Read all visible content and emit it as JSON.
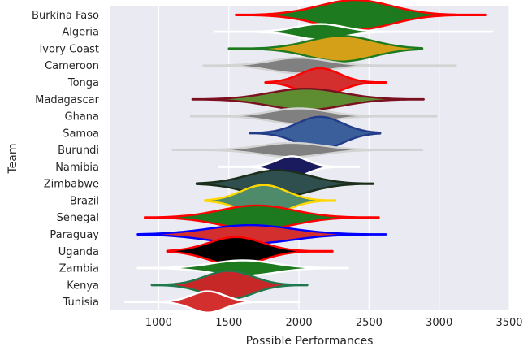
{
  "chart_data": {
    "type": "violin",
    "title": "",
    "xlabel": "Possible Performances",
    "ylabel": "Team",
    "xlim": [
      650,
      3500
    ],
    "xticks": [
      1000,
      1500,
      2000,
      2500,
      3000,
      3500
    ],
    "grid": true,
    "background": "#EAEAF2",
    "teams": [
      {
        "name": "Burkina Faso",
        "fill": "#1E7A1E",
        "edge": "#FF0000",
        "min": 1550,
        "max": 3330,
        "peak": 2400,
        "half_width": 0.42,
        "spread": 260
      },
      {
        "name": "Algeria",
        "fill": "#1E7A1E",
        "edge": "#FFFFFF",
        "min": 1400,
        "max": 3380,
        "peak": 2150,
        "half_width": 0.22,
        "spread": 170
      },
      {
        "name": "Ivory Coast",
        "fill": "#D4A017",
        "edge": "#1E7A1E",
        "min": 1500,
        "max": 2880,
        "peak": 2300,
        "half_width": 0.36,
        "spread": 230
      },
      {
        "name": "Cameroon",
        "fill": "#808080",
        "edge": "#D3D3D3",
        "min": 1320,
        "max": 3120,
        "peak": 2000,
        "half_width": 0.22,
        "spread": 200
      },
      {
        "name": "Tonga",
        "fill": "#D32F2F",
        "edge": "#FF0000",
        "min": 1760,
        "max": 2620,
        "peak": 2150,
        "half_width": 0.4,
        "spread": 140
      },
      {
        "name": "Madagascar",
        "fill": "#5E8C31",
        "edge": "#7B1020",
        "min": 1240,
        "max": 2890,
        "peak": 2050,
        "half_width": 0.3,
        "spread": 260
      },
      {
        "name": "Ghana",
        "fill": "#808080",
        "edge": "#D3D3D3",
        "min": 1230,
        "max": 2980,
        "peak": 2000,
        "half_width": 0.22,
        "spread": 200
      },
      {
        "name": "Samoa",
        "fill": "#3A5F9A",
        "edge": "#233C8A",
        "min": 1650,
        "max": 2580,
        "peak": 2150,
        "half_width": 0.46,
        "spread": 160
      },
      {
        "name": "Burundi",
        "fill": "#808080",
        "edge": "#D3D3D3",
        "min": 1100,
        "max": 2880,
        "peak": 1950,
        "half_width": 0.2,
        "spread": 220
      },
      {
        "name": "Namibia",
        "fill": "#1A1A5E",
        "edge": "#FFFFFF",
        "min": 1430,
        "max": 2430,
        "peak": 1950,
        "half_width": 0.3,
        "spread": 110
      },
      {
        "name": "Zimbabwe",
        "fill": "#2F4F4F",
        "edge": "#1A2E1A",
        "min": 1270,
        "max": 2530,
        "peak": 1850,
        "half_width": 0.38,
        "spread": 220
      },
      {
        "name": "Brazil",
        "fill": "#4E8B6B",
        "edge": "#FFD700",
        "min": 1330,
        "max": 2260,
        "peak": 1750,
        "half_width": 0.44,
        "spread": 160
      },
      {
        "name": "Senegal",
        "fill": "#1E7A1E",
        "edge": "#FF0000",
        "min": 900,
        "max": 2570,
        "peak": 1700,
        "half_width": 0.34,
        "spread": 260
      },
      {
        "name": "Paraguay",
        "fill": "#D32F2F",
        "edge": "#0000FF",
        "min": 850,
        "max": 2620,
        "peak": 1650,
        "half_width": 0.26,
        "spread": 300
      },
      {
        "name": "Uganda",
        "fill": "#000000",
        "edge": "#FF0000",
        "min": 1060,
        "max": 2240,
        "peak": 1550,
        "half_width": 0.4,
        "spread": 190
      },
      {
        "name": "Zambia",
        "fill": "#1E7A1E",
        "edge": "#FFFFFF",
        "min": 850,
        "max": 2350,
        "peak": 1600,
        "half_width": 0.22,
        "spread": 220
      },
      {
        "name": "Kenya",
        "fill": "#C62828",
        "edge": "#1E7A4E",
        "min": 950,
        "max": 2060,
        "peak": 1500,
        "half_width": 0.4,
        "spread": 170
      },
      {
        "name": "Tunisia",
        "fill": "#D32F2F",
        "edge": "#FFFFFF",
        "min": 760,
        "max": 2000,
        "peak": 1350,
        "half_width": 0.3,
        "spread": 120
      }
    ]
  }
}
